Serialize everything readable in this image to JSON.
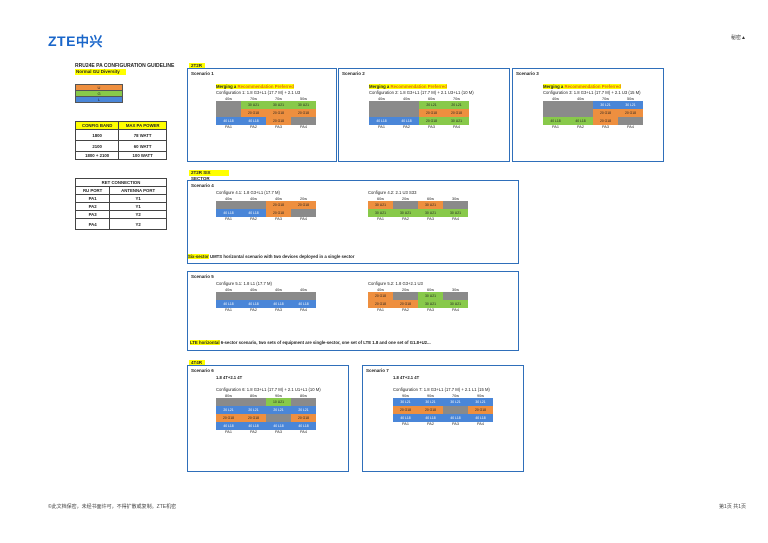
{
  "header": {
    "logo_en": "ZTE",
    "logo_cn": "中兴",
    "confidential": "秘密▲"
  },
  "guideline": {
    "title": "RRU24E PA CONFIGURATION GUIDELINE",
    "subtitle": "Normal GU Diversity",
    "legend": [
      {
        "label": "U",
        "color": "#ee8f3f"
      },
      {
        "label": "G",
        "color": "#88c94a"
      },
      {
        "label": "L",
        "color": "#4a86d8"
      }
    ],
    "power_table": {
      "headers": [
        "CONFIG BAND",
        "MAX PA POWER"
      ],
      "rows": [
        [
          "1800",
          "78 WATT"
        ],
        [
          "2100",
          "60 WATT"
        ],
        [
          "1800 + 2100",
          "100 WATT"
        ]
      ]
    },
    "ret_table": {
      "title": "RET CONNECTION",
      "headers": [
        "RU PORT",
        "ANTENNA PORT"
      ],
      "rows": [
        [
          "PA1",
          "Y1"
        ],
        [
          "PA2",
          "Y1"
        ],
        [
          "PA3",
          "Y2"
        ],
        [
          "PA4",
          "Y2"
        ]
      ]
    }
  },
  "sections": {
    "s2t2r": "2T2R",
    "s2t2r_six": "2T2R SIX SECTOR",
    "s4t4r": "4T4R"
  },
  "scenarios": {
    "sc1": {
      "title": "Scenario 1",
      "merge_prefix": "Merging a ",
      "merge_mode": "Recommendation Preferred",
      "config": "Configuration 1: 1.8 G3+L1 (17.7 M) + 2.1 U3",
      "power": [
        "40w",
        "70w",
        "70w",
        "50w"
      ],
      "cells": [
        [
          "gy",
          ""
        ],
        [
          "gr",
          "30 U21"
        ],
        [
          "gr",
          "30 U21"
        ],
        [
          "gr",
          "30 U21"
        ],
        [
          "gy",
          ""
        ],
        [
          "or2",
          "20 G18"
        ],
        [
          "or2",
          "20 G18"
        ],
        [
          "or2",
          "20 G18"
        ],
        [
          "bl",
          "40 L18"
        ],
        [
          "bl",
          "40 L18"
        ],
        [
          "or2",
          "20 G18"
        ],
        [
          "gy",
          ""
        ]
      ],
      "pa": [
        "PA1",
        "PA2",
        "PA3",
        "PA4"
      ]
    },
    "sc2": {
      "title": "Scenario 2",
      "merge_prefix": "Merging a ",
      "merge_mode": "Recommendation Preferred",
      "config": "Configuration 2: 1.8 G3+L1 (17.7 M) + 2.1 U3+L1 (10 M)",
      "power": [
        "40w",
        "40w",
        "60w",
        "70w"
      ],
      "cells": [
        [
          "gy",
          ""
        ],
        [
          "gy",
          ""
        ],
        [
          "gr",
          "20 L21"
        ],
        [
          "gr",
          "20 L21"
        ],
        [
          "gy",
          ""
        ],
        [
          "gy",
          ""
        ],
        [
          "or2",
          "20 G18"
        ],
        [
          "or2",
          "20 G18"
        ],
        [
          "bl",
          "40 L18"
        ],
        [
          "bl",
          "40 L18"
        ],
        [
          "gr",
          "20 G18"
        ],
        [
          "gr",
          "30 U21"
        ]
      ],
      "pa": [
        "PA1",
        "PA2",
        "PA3",
        "PA4"
      ]
    },
    "sc3": {
      "title": "Scenario 3",
      "merge_prefix": "Merging a ",
      "merge_mode": "Recommendation Preferred",
      "config": "Configuration 3: 1.8 G3+L1 (17.7 M) + 2.1 U3 (15 M)",
      "power": [
        "40w",
        "40w",
        "70w",
        "50w"
      ],
      "cells": [
        [
          "gy",
          ""
        ],
        [
          "gy",
          ""
        ],
        [
          "bl",
          "30 L21"
        ],
        [
          "bl",
          "30 L21"
        ],
        [
          "gy",
          ""
        ],
        [
          "gy",
          ""
        ],
        [
          "or2",
          "20 G18"
        ],
        [
          "or2",
          "20 G18"
        ],
        [
          "gr",
          "40 L18"
        ],
        [
          "gr",
          "40 L18"
        ],
        [
          "or2",
          "20 G18"
        ],
        [
          "gy",
          ""
        ]
      ],
      "pa": [
        "PA1",
        "PA2",
        "PA3",
        "PA4"
      ]
    },
    "sc4": {
      "title": "Scenario 4",
      "c1": {
        "config": "Configure 4.1: 1.8 G3+L1 (17.7 M)",
        "power": [
          "40w",
          "40w",
          "40w",
          "20w"
        ],
        "cells": [
          [
            "gy",
            ""
          ],
          [
            "gy",
            ""
          ],
          [
            "or2",
            "20 G18"
          ],
          [
            "or2",
            "20 G18"
          ],
          [
            "bl",
            "40 L18"
          ],
          [
            "bl",
            "40 L18"
          ],
          [
            "or2",
            "20 G18"
          ],
          [
            "gy",
            ""
          ]
        ]
      },
      "c2": {
        "config": "Configure 4.2: 2.1 U3 S33",
        "power": [
          "60w",
          "20w",
          "60w",
          "30w"
        ],
        "cells": [
          [
            "or2",
            "30 U21"
          ],
          [
            "gy",
            ""
          ],
          [
            "or2",
            "30 U21"
          ],
          [
            "gy",
            ""
          ],
          [
            "gr",
            "30 U21"
          ],
          [
            "gr",
            "30 U21"
          ],
          [
            "gr",
            "30 U21"
          ],
          [
            "gr",
            "30 U21"
          ]
        ]
      },
      "pa": [
        "PA1",
        "PA2",
        "PA3",
        "PA4"
      ],
      "note_hl": "Six-sector",
      "note": " UMTS horizontal scenario with two devices deployed in a single sector"
    },
    "sc5": {
      "title": "Scenario 5",
      "c1": {
        "config": "Configure 5.1: 1.8 L1 (17.7 M)",
        "power": [
          "40w",
          "40w",
          "40w",
          "40w"
        ],
        "cells": [
          [
            "gy",
            ""
          ],
          [
            "gy",
            ""
          ],
          [
            "gy",
            ""
          ],
          [
            "gy",
            ""
          ],
          [
            "bl",
            "40 L18"
          ],
          [
            "bl",
            "40 L18"
          ],
          [
            "bl",
            "40 L18"
          ],
          [
            "bl",
            "40 L18"
          ]
        ]
      },
      "c2": {
        "config": "Configure 5.2: 1.8 G3+2.1 U3",
        "power": [
          "40w",
          "20w",
          "60w",
          "30w"
        ],
        "cells": [
          [
            "or2",
            "20 G18"
          ],
          [
            "gy",
            ""
          ],
          [
            "gr",
            "30 U21"
          ],
          [
            "gy",
            ""
          ],
          [
            "or2",
            "20 G18"
          ],
          [
            "or2",
            "20 G18"
          ],
          [
            "gr",
            "30 U21"
          ],
          [
            "gr",
            "30 U21"
          ]
        ]
      },
      "pa": [
        "PA1",
        "PA2",
        "PA3",
        "PA4"
      ],
      "note_hl": "LTE horizontal",
      "note": " 6-sector scenario, two sets of equipment are single-sector, one set of LTE 1.8 and one set of G1.8+U2..."
    },
    "sc6": {
      "title": "Scenario 6",
      "sub": "1.8 4T+2.1 4T",
      "config": "Configuration 6: 1.8 G3+L1 (17.7 M) + 2.1 U1+L1 (10 M)",
      "power": [
        "80w",
        "80w",
        "90w",
        "80w"
      ],
      "cells": [
        [
          "gy",
          ""
        ],
        [
          "gy",
          ""
        ],
        [
          "gr",
          "10 U21"
        ],
        [
          "gy",
          ""
        ],
        [
          "bl",
          "20 L21"
        ],
        [
          "bl",
          "20 L21"
        ],
        [
          "bl",
          "20 L21"
        ],
        [
          "bl",
          "20 L21"
        ],
        [
          "or2",
          "20 G18"
        ],
        [
          "or2",
          "20 G18"
        ],
        [
          "gy",
          ""
        ],
        [
          "or2",
          "20 G18"
        ],
        [
          "bl",
          "40 L18"
        ],
        [
          "bl",
          "40 L18"
        ],
        [
          "bl",
          "40 L18"
        ],
        [
          "bl",
          "40 L18"
        ]
      ],
      "pa": [
        "PA1",
        "PA2",
        "PA3",
        "PA4"
      ]
    },
    "sc7": {
      "title": "Scenario 7",
      "sub": "1.8 4T+2.1 4T",
      "config": "Configuration 7: 1.8 G3+L1 (17.7 M) + 2.1 L1 (15 M)",
      "power": [
        "90w",
        "90w",
        "70w",
        "90w"
      ],
      "cells": [
        [
          "bl",
          "30 L21"
        ],
        [
          "bl",
          "30 L21"
        ],
        [
          "bl",
          "30 L21"
        ],
        [
          "bl",
          "30 L21"
        ],
        [
          "or2",
          "20 G18"
        ],
        [
          "or2",
          "20 G18"
        ],
        [
          "gy",
          ""
        ],
        [
          "or2",
          "20 G18"
        ],
        [
          "bl",
          "40 L18"
        ],
        [
          "bl",
          "40 L18"
        ],
        [
          "bl",
          "40 L18"
        ],
        [
          "bl",
          "40 L18"
        ]
      ],
      "pa": [
        "PA1",
        "PA2",
        "PA3",
        "PA4"
      ]
    }
  },
  "footer": {
    "left": "©此文档保密，未经书面许可，不得扩散或复制。ZTE机密",
    "right": "第1页 共1页"
  }
}
